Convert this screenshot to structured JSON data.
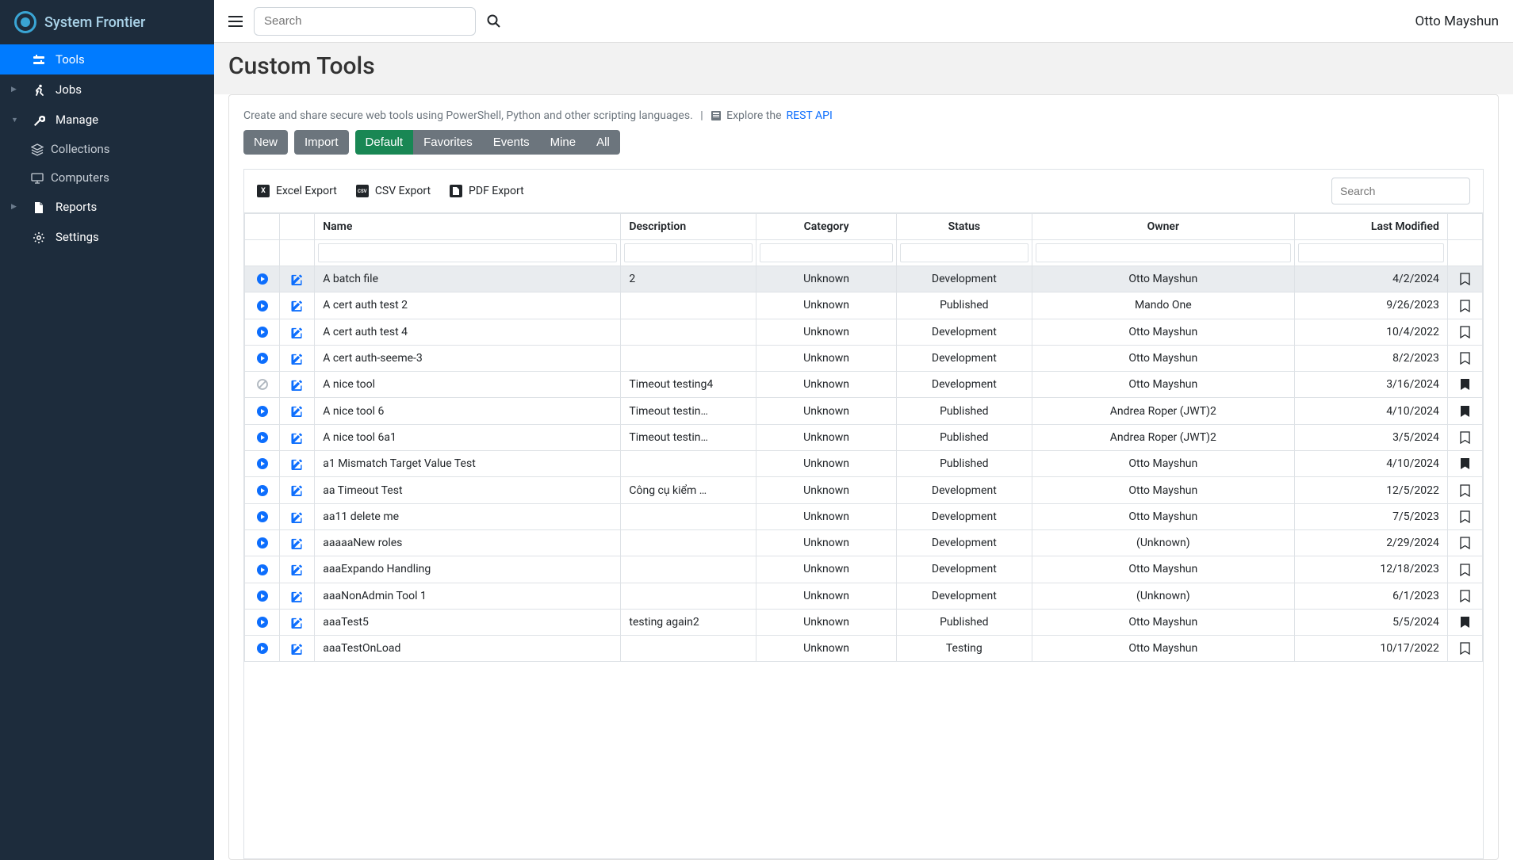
{
  "brand": "System Frontier",
  "topbar": {
    "search_placeholder": "Search",
    "user": "Otto Mayshun"
  },
  "sidebar": {
    "items": [
      {
        "label": "Tools",
        "icon": "tools",
        "active": true
      },
      {
        "label": "Jobs",
        "icon": "running",
        "expandable": true
      },
      {
        "label": "Manage",
        "icon": "wrench",
        "expandable": true,
        "expanded": true,
        "children": [
          {
            "label": "Collections",
            "icon": "layers"
          },
          {
            "label": "Computers",
            "icon": "monitor"
          }
        ]
      },
      {
        "label": "Reports",
        "icon": "file",
        "expandable": true
      },
      {
        "label": "Settings",
        "icon": "gear"
      }
    ]
  },
  "page": {
    "title": "Custom Tools",
    "intro": "Create and share secure web tools using PowerShell, Python and other scripting languages.",
    "explore_prefix": "Explore the ",
    "explore_link": "REST API"
  },
  "buttons": {
    "new": "New",
    "import": "Import",
    "tabs": [
      "Default",
      "Favorites",
      "Events",
      "Mine",
      "All"
    ],
    "active_tab": 0
  },
  "exports": {
    "excel": "Excel Export",
    "csv": "CSV Export",
    "pdf": "PDF Export",
    "search_placeholder": "Search"
  },
  "table": {
    "columns": [
      "Name",
      "Description",
      "Category",
      "Status",
      "Owner",
      "Last Modified"
    ],
    "rows": [
      {
        "play": true,
        "name": "A batch file",
        "desc": "2",
        "cat": "Unknown",
        "status": "Development",
        "owner": "Otto Mayshun",
        "mod": "4/2/2024",
        "book": "outline",
        "hover": true
      },
      {
        "play": true,
        "name": "A cert auth test 2",
        "desc": "",
        "cat": "Unknown",
        "status": "Published",
        "owner": "Mando One",
        "mod": "9/26/2023",
        "book": "outline"
      },
      {
        "play": true,
        "name": "A cert auth test 4",
        "desc": "",
        "cat": "Unknown",
        "status": "Development",
        "owner": "Otto Mayshun",
        "mod": "10/4/2022",
        "book": "outline"
      },
      {
        "play": true,
        "name": "A cert auth-seeme-3",
        "desc": "",
        "cat": "Unknown",
        "status": "Development",
        "owner": "Otto Mayshun",
        "mod": "8/2/2023",
        "book": "outline"
      },
      {
        "play": false,
        "name": "A nice tool",
        "desc": "Timeout testing4",
        "cat": "Unknown",
        "status": "Development",
        "owner": "Otto Mayshun",
        "mod": "3/16/2024",
        "book": "solid"
      },
      {
        "play": true,
        "name": "A nice tool 6",
        "desc": "Timeout testin…",
        "cat": "Unknown",
        "status": "Published",
        "owner": "Andrea Roper (JWT)2",
        "mod": "4/10/2024",
        "book": "solid"
      },
      {
        "play": true,
        "name": "A nice tool 6a1",
        "desc": "Timeout testin…",
        "cat": "Unknown",
        "status": "Published",
        "owner": "Andrea Roper (JWT)2",
        "mod": "3/5/2024",
        "book": "outline"
      },
      {
        "play": true,
        "name": "a1 Mismatch Target Value Test",
        "desc": "",
        "cat": "Unknown",
        "status": "Published",
        "owner": "Otto Mayshun",
        "mod": "4/10/2024",
        "book": "solid"
      },
      {
        "play": true,
        "name": "aa Timeout Test",
        "desc": "Công cụ kiểm …",
        "cat": "Unknown",
        "status": "Development",
        "owner": "Otto Mayshun",
        "mod": "12/5/2022",
        "book": "outline"
      },
      {
        "play": true,
        "name": "aa11 delete me",
        "desc": "",
        "cat": "Unknown",
        "status": "Development",
        "owner": "Otto Mayshun",
        "mod": "7/5/2023",
        "book": "outline"
      },
      {
        "play": true,
        "name": "aaaaaNew roles",
        "desc": "",
        "cat": "Unknown",
        "status": "Development",
        "owner": "(Unknown)",
        "mod": "2/29/2024",
        "book": "outline"
      },
      {
        "play": true,
        "name": "aaaExpando Handling",
        "desc": "",
        "cat": "Unknown",
        "status": "Development",
        "owner": "Otto Mayshun",
        "mod": "12/18/2023",
        "book": "outline"
      },
      {
        "play": true,
        "name": "aaaNonAdmin Tool 1",
        "desc": "",
        "cat": "Unknown",
        "status": "Development",
        "owner": "(Unknown)",
        "mod": "6/1/2023",
        "book": "outline"
      },
      {
        "play": true,
        "name": "aaaTest5",
        "desc": "testing again2",
        "cat": "Unknown",
        "status": "Published",
        "owner": "Otto Mayshun",
        "mod": "5/5/2024",
        "book": "solid"
      },
      {
        "play": true,
        "name": "aaaTestOnLoad",
        "desc": "",
        "cat": "Unknown",
        "status": "Testing",
        "owner": "Otto Mayshun",
        "mod": "10/17/2022",
        "book": "outline"
      }
    ]
  }
}
